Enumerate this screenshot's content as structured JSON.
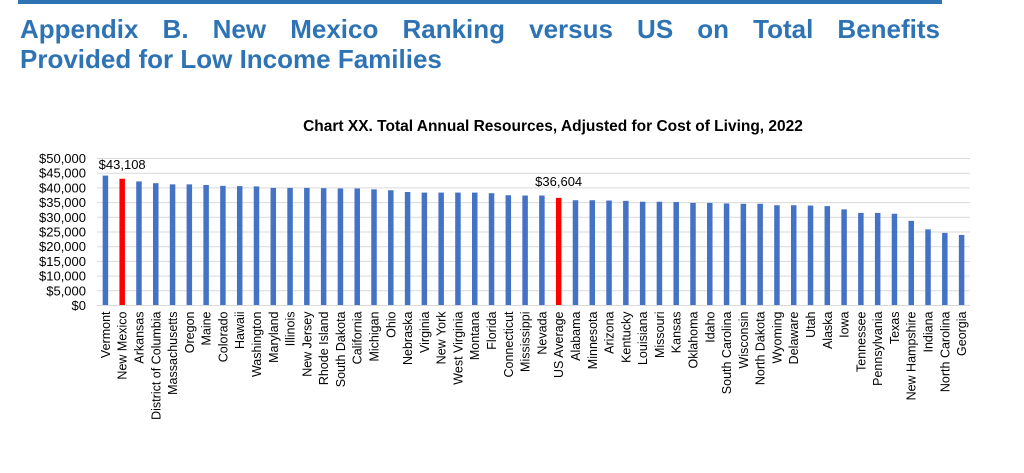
{
  "page": {
    "title_line1": "Appendix B. New Mexico Ranking versus US on Total Benefits",
    "title_line2": "Provided for Low Income Families",
    "accent_color": "#2E74B5"
  },
  "chart_data": {
    "type": "bar",
    "title": "Chart XX. Total Annual Resources, Adjusted for Cost of Living, 2022",
    "xlabel": "",
    "ylabel": "",
    "ylim": [
      0,
      50000
    ],
    "yticks": [
      0,
      5000,
      10000,
      15000,
      20000,
      25000,
      30000,
      35000,
      40000,
      45000,
      50000
    ],
    "ytick_labels": [
      "$0",
      "$5,000",
      "$10,000",
      "$15,000",
      "$20,000",
      "$25,000",
      "$30,000",
      "$35,000",
      "$40,000",
      "$45,000",
      "$50,000"
    ],
    "grid": true,
    "legend": "none",
    "bar_color": "#4472C4",
    "highlight_color": "#FF0000",
    "categories": [
      "Vermont",
      "New Mexico",
      "Arkansas",
      "District of Columbia",
      "Massachusetts",
      "Oregon",
      "Maine",
      "Colorado",
      "Hawaii",
      "Washington",
      "Maryland",
      "Illinois",
      "New Jersey",
      "Rhode Island",
      "South Dakota",
      "California",
      "Michigan",
      "Ohio",
      "Nebraska",
      "Virginia",
      "New York",
      "West Virginia",
      "Montana",
      "Florida",
      "Connecticut",
      "Mississippi",
      "Nevada",
      "US Average",
      "Alabama",
      "Minnesota",
      "Arizona",
      "Kentucky",
      "Louisiana",
      "Missouri",
      "Kansas",
      "Oklahoma",
      "Idaho",
      "South Carolina",
      "Wisconsin",
      "North Dakota",
      "Wyoming",
      "Delaware",
      "Utah",
      "Alaska",
      "Iowa",
      "Tennessee",
      "Pennsylvania",
      "Texas",
      "New Hampshire",
      "Indiana",
      "North Carolina",
      "Georgia"
    ],
    "values": [
      44200,
      43108,
      42200,
      41600,
      41200,
      41200,
      41000,
      40700,
      40600,
      40500,
      40000,
      40000,
      40000,
      39900,
      39800,
      39800,
      39500,
      39200,
      38600,
      38400,
      38400,
      38400,
      38400,
      38200,
      37500,
      37400,
      37400,
      36604,
      35800,
      35800,
      35700,
      35600,
      35300,
      35300,
      35200,
      34900,
      34900,
      34700,
      34600,
      34600,
      34100,
      34100,
      34000,
      33800,
      32700,
      31500,
      31500,
      31200,
      28800,
      25900,
      24700,
      24000
    ],
    "highlighted": [
      "New Mexico",
      "US Average"
    ],
    "data_labels": [
      {
        "category": "New Mexico",
        "text": "$43,108"
      },
      {
        "category": "US Average",
        "text": "$36,604"
      }
    ]
  }
}
